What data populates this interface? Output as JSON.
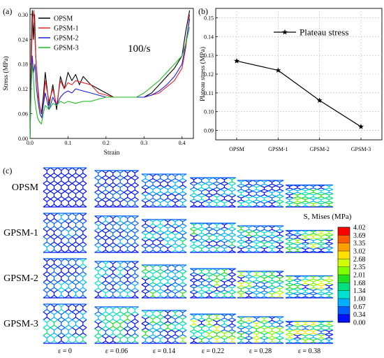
{
  "chart_data": [
    {
      "type": "line",
      "panel_label": "(a)",
      "annotation": "100/s",
      "xlabel": "Strain",
      "ylabel": "Stress (MPa)",
      "xlim": [
        0,
        0.43
      ],
      "ylim": [
        0,
        0.315
      ],
      "xticks": [
        0.0,
        0.1,
        0.2,
        0.3,
        0.4
      ],
      "xtick_labels": [
        "0.0",
        "0.1",
        "0.2",
        "0.3",
        "0.4"
      ],
      "yticks": [
        0,
        0.06,
        0.12,
        0.18,
        0.24,
        0.3
      ],
      "ytick_labels": [
        "0.00",
        "0.06",
        "0.12",
        "0.18",
        "0.24",
        "0.30"
      ],
      "grid": false,
      "legend_position": "top-left",
      "series": [
        {
          "name": "OPSM",
          "color": "#000000",
          "x": [
            0,
            0.003,
            0.006,
            0.009,
            0.012,
            0.015,
            0.02,
            0.025,
            0.03,
            0.035,
            0.04,
            0.05,
            0.06,
            0.07,
            0.08,
            0.09,
            0.1,
            0.11,
            0.12,
            0.13,
            0.14,
            0.15,
            0.16,
            0.18,
            0.2,
            0.22,
            0.24,
            0.26,
            0.28,
            0.3,
            0.32,
            0.34,
            0.36,
            0.38,
            0.4,
            0.41,
            0.42
          ],
          "y": [
            0,
            0.2,
            0.31,
            0.24,
            0.3,
            0.2,
            0.13,
            0.08,
            0.06,
            0.1,
            0.16,
            0.08,
            0.13,
            0.07,
            0.15,
            0.12,
            0.16,
            0.14,
            0.155,
            0.13,
            0.15,
            0.14,
            0.13,
            0.12,
            0.11,
            0.1,
            0.1,
            0.1,
            0.1,
            0.1,
            0.11,
            0.13,
            0.15,
            0.17,
            0.2,
            0.26,
            0.31
          ]
        },
        {
          "name": "GPSM-1",
          "color": "#e8202a",
          "x": [
            0,
            0.003,
            0.007,
            0.01,
            0.014,
            0.018,
            0.022,
            0.027,
            0.032,
            0.036,
            0.04,
            0.05,
            0.06,
            0.07,
            0.08,
            0.09,
            0.1,
            0.11,
            0.12,
            0.14,
            0.16,
            0.18,
            0.2,
            0.22,
            0.24,
            0.26,
            0.28,
            0.3,
            0.32,
            0.34,
            0.36,
            0.38,
            0.4,
            0.41,
            0.42
          ],
          "y": [
            0,
            0.18,
            0.29,
            0.31,
            0.22,
            0.15,
            0.1,
            0.07,
            0.06,
            0.09,
            0.14,
            0.09,
            0.12,
            0.08,
            0.14,
            0.12,
            0.135,
            0.13,
            0.14,
            0.135,
            0.13,
            0.11,
            0.105,
            0.1,
            0.1,
            0.1,
            0.1,
            0.1,
            0.105,
            0.11,
            0.125,
            0.14,
            0.17,
            0.22,
            0.3
          ]
        },
        {
          "name": "GPSM-2",
          "color": "#2020e0",
          "x": [
            0,
            0.003,
            0.006,
            0.009,
            0.013,
            0.017,
            0.021,
            0.026,
            0.031,
            0.035,
            0.04,
            0.05,
            0.06,
            0.07,
            0.08,
            0.09,
            0.1,
            0.11,
            0.12,
            0.14,
            0.16,
            0.18,
            0.2,
            0.22,
            0.24,
            0.26,
            0.28,
            0.3,
            0.32,
            0.34,
            0.36,
            0.38,
            0.4,
            0.41,
            0.42
          ],
          "y": [
            0,
            0.14,
            0.2,
            0.16,
            0.18,
            0.12,
            0.09,
            0.06,
            0.05,
            0.08,
            0.11,
            0.07,
            0.1,
            0.08,
            0.1,
            0.11,
            0.115,
            0.11,
            0.12,
            0.115,
            0.11,
            0.105,
            0.1,
            0.1,
            0.1,
            0.1,
            0.1,
            0.1,
            0.105,
            0.115,
            0.13,
            0.15,
            0.18,
            0.23,
            0.29
          ]
        },
        {
          "name": "GPSM-3",
          "color": "#22bb22",
          "x": [
            0,
            0.003,
            0.006,
            0.009,
            0.012,
            0.016,
            0.02,
            0.025,
            0.03,
            0.035,
            0.04,
            0.05,
            0.06,
            0.07,
            0.08,
            0.09,
            0.1,
            0.12,
            0.14,
            0.16,
            0.18,
            0.2,
            0.22,
            0.24,
            0.26,
            0.28,
            0.3,
            0.32,
            0.34,
            0.36,
            0.38,
            0.4,
            0.41,
            0.42
          ],
          "y": [
            0,
            0.12,
            0.18,
            0.15,
            0.1,
            0.07,
            0.05,
            0.04,
            0.035,
            0.06,
            0.08,
            0.07,
            0.085,
            0.08,
            0.09,
            0.085,
            0.09,
            0.085,
            0.09,
            0.09,
            0.095,
            0.1,
            0.1,
            0.1,
            0.1,
            0.1,
            0.11,
            0.125,
            0.14,
            0.16,
            0.18,
            0.2,
            0.23,
            0.27
          ]
        }
      ]
    },
    {
      "type": "line",
      "panel_label": "(b)",
      "xlabel": "",
      "ylabel": "Plateau stress (MPa)",
      "categories": [
        "OPSM",
        "GPSM-1",
        "GPSM-2",
        "GPSM-3"
      ],
      "ylim": [
        0.085,
        0.155
      ],
      "yticks": [
        0.09,
        0.1,
        0.11,
        0.12,
        0.13,
        0.14,
        0.15
      ],
      "ytick_labels": [
        "0.09",
        "0.10",
        "0.11",
        "0.12",
        "0.13",
        "0.14",
        "0.15"
      ],
      "grid": true,
      "legend_position": "top-right",
      "series": [
        {
          "name": "Plateau stress",
          "color": "#000000",
          "marker": "star",
          "values": [
            0.127,
            0.122,
            0.106,
            0.092
          ]
        }
      ]
    }
  ],
  "figure_c": {
    "panel_label": "(c)",
    "rows": [
      "OPSM",
      "GPSM-1",
      "GPSM-2",
      "GPSM-3"
    ],
    "columns": [
      "ε = 0",
      "ε = 0.06",
      "ε = 0.14",
      "ε = 0.22",
      "ε = 0.28",
      "ε = 0.38"
    ],
    "compression_strain": [
      0,
      0.06,
      0.14,
      0.22,
      0.28,
      0.38
    ],
    "colorbar": {
      "title": "S, Mises (MPa)",
      "labels": [
        "4.02",
        "3.69",
        "3.35",
        "3.02",
        "2.68",
        "2.35",
        "2.01",
        "1.68",
        "1.34",
        "1.00",
        "0.67",
        "0.34",
        "0.00"
      ],
      "colors": [
        "#ff0000",
        "#ff5a00",
        "#ffa000",
        "#ffe000",
        "#d0ff00",
        "#80ff00",
        "#20e020",
        "#00e080",
        "#00e0d0",
        "#00b0ff",
        "#0060ff",
        "#0010ff"
      ]
    }
  }
}
